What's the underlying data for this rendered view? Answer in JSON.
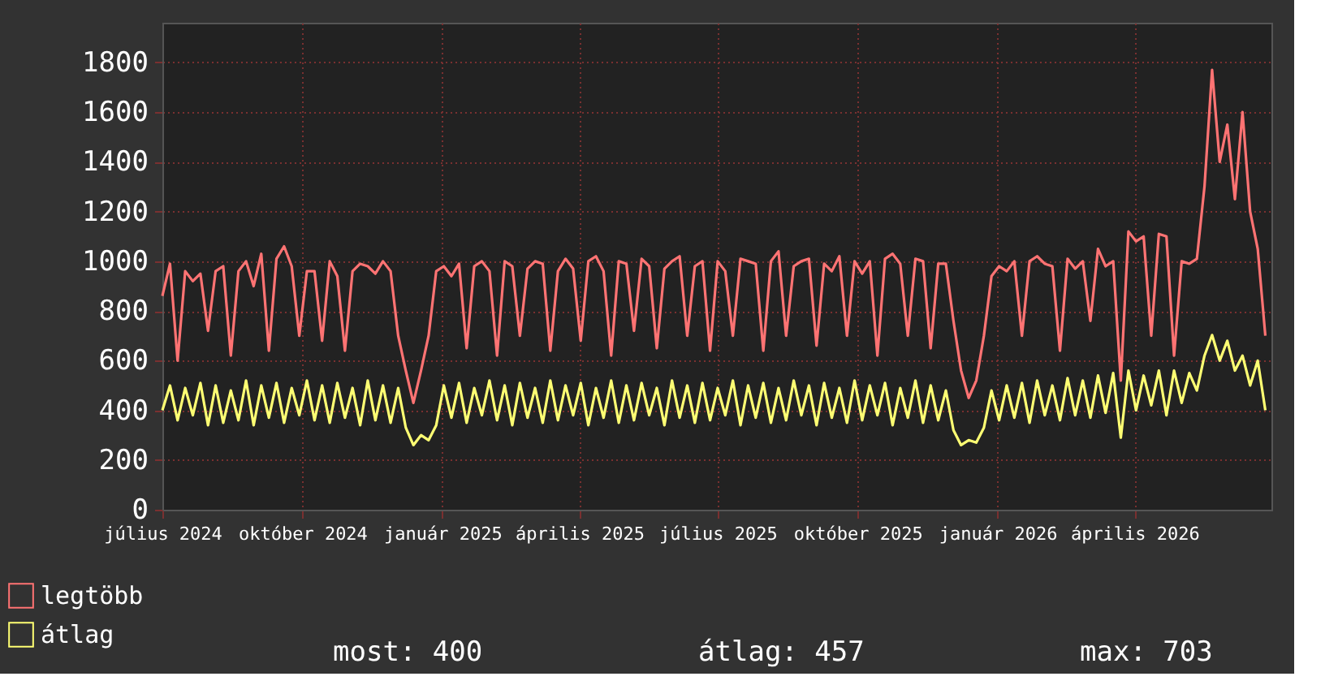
{
  "chart_data": {
    "type": "line",
    "x": [
      "2024-07-01",
      "2024-07-06",
      "2024-07-11",
      "2024-07-16",
      "2024-07-21",
      "2024-07-26",
      "2024-07-31",
      "2024-08-05",
      "2024-08-10",
      "2024-08-15",
      "2024-08-20",
      "2024-08-25",
      "2024-08-30",
      "2024-09-04",
      "2024-09-09",
      "2024-09-14",
      "2024-09-19",
      "2024-09-24",
      "2024-09-29",
      "2024-10-04",
      "2024-10-09",
      "2024-10-14",
      "2024-10-19",
      "2024-10-24",
      "2024-10-29",
      "2024-11-03",
      "2024-11-08",
      "2024-11-13",
      "2024-11-18",
      "2024-11-23",
      "2024-11-28",
      "2024-12-03",
      "2024-12-08",
      "2024-12-13",
      "2024-12-18",
      "2024-12-23",
      "2024-12-28",
      "2025-01-02",
      "2025-01-07",
      "2025-01-12",
      "2025-01-17",
      "2025-01-22",
      "2025-01-27",
      "2025-02-01",
      "2025-02-06",
      "2025-02-11",
      "2025-02-16",
      "2025-02-21",
      "2025-02-26",
      "2025-03-03",
      "2025-03-08",
      "2025-03-13",
      "2025-03-18",
      "2025-03-23",
      "2025-03-28",
      "2025-04-02",
      "2025-04-07",
      "2025-04-12",
      "2025-04-17",
      "2025-04-22",
      "2025-04-27",
      "2025-05-02",
      "2025-05-07",
      "2025-05-12",
      "2025-05-17",
      "2025-05-22",
      "2025-05-27",
      "2025-06-01",
      "2025-06-06",
      "2025-06-11",
      "2025-06-16",
      "2025-06-21",
      "2025-06-26",
      "2025-07-01",
      "2025-07-06",
      "2025-07-11",
      "2025-07-16",
      "2025-07-21",
      "2025-07-26",
      "2025-07-31",
      "2025-08-05",
      "2025-08-10",
      "2025-08-15",
      "2025-08-20",
      "2025-08-25",
      "2025-08-30",
      "2025-09-04",
      "2025-09-09",
      "2025-09-14",
      "2025-09-19",
      "2025-09-24",
      "2025-09-29",
      "2025-10-04",
      "2025-10-09",
      "2025-10-14",
      "2025-10-19",
      "2025-10-24",
      "2025-10-29",
      "2025-11-03",
      "2025-11-08",
      "2025-11-13",
      "2025-11-18",
      "2025-11-23",
      "2025-11-28",
      "2025-12-03",
      "2025-12-08",
      "2025-12-13",
      "2025-12-18",
      "2025-12-23",
      "2025-12-28",
      "2026-01-02",
      "2026-01-07",
      "2026-01-12",
      "2026-01-17",
      "2026-01-22",
      "2026-01-27",
      "2026-02-01",
      "2026-02-06",
      "2026-02-11",
      "2026-02-16",
      "2026-02-21",
      "2026-02-26",
      "2026-03-03",
      "2026-03-08",
      "2026-03-13",
      "2026-03-18",
      "2026-03-23",
      "2026-03-28",
      "2026-04-02",
      "2026-04-07",
      "2026-04-12",
      "2026-04-17",
      "2026-04-22",
      "2026-04-27",
      "2026-05-02",
      "2026-05-07",
      "2026-05-12",
      "2026-05-17",
      "2026-05-22",
      "2026-05-27",
      "2026-06-01",
      "2026-06-06",
      "2026-06-11",
      "2026-06-16",
      "2026-06-21",
      "2026-06-26"
    ],
    "xlim": [
      "2024-07-01",
      "2026-06-30"
    ],
    "xticks": [
      {
        "value": "2024-07-01",
        "label": "július 2024"
      },
      {
        "value": "2024-10-01",
        "label": "október 2024"
      },
      {
        "value": "2025-01-01",
        "label": "január 2025"
      },
      {
        "value": "2025-04-01",
        "label": "április 2025"
      },
      {
        "value": "2025-07-01",
        "label": "július 2025"
      },
      {
        "value": "2025-10-01",
        "label": "október 2025"
      },
      {
        "value": "2026-01-01",
        "label": "január 2026"
      },
      {
        "value": "2026-04-01",
        "label": "április 2026"
      }
    ],
    "ylim": [
      0,
      1960
    ],
    "yticks": [
      0,
      200,
      400,
      600,
      800,
      1000,
      1200,
      1400,
      1600,
      1800
    ],
    "grid": true,
    "legend": "bottom left",
    "marker": "none",
    "line_style": "solid",
    "series": [
      {
        "name": "legtöbb",
        "color": "#ff7373",
        "values": [
          860,
          990,
          600,
          960,
          920,
          950,
          720,
          960,
          980,
          620,
          960,
          1000,
          900,
          1030,
          640,
          1010,
          1060,
          980,
          700,
          960,
          960,
          680,
          1000,
          940,
          640,
          960,
          990,
          980,
          950,
          1000,
          960,
          700,
          560,
          430,
          560,
          700,
          960,
          980,
          940,
          990,
          650,
          980,
          1000,
          960,
          620,
          1000,
          980,
          700,
          970,
          1000,
          990,
          640,
          960,
          1010,
          970,
          680,
          1000,
          1020,
          960,
          620,
          1000,
          990,
          720,
          1010,
          980,
          650,
          970,
          1000,
          1020,
          700,
          980,
          1000,
          640,
          1000,
          960,
          700,
          1010,
          1000,
          990,
          640,
          1000,
          1040,
          700,
          980,
          1000,
          1010,
          660,
          990,
          960,
          1020,
          700,
          1000,
          950,
          1000,
          620,
          1010,
          1030,
          990,
          700,
          1010,
          1000,
          650,
          990,
          990,
          760,
          560,
          450,
          520,
          700,
          940,
          980,
          960,
          1000,
          700,
          1000,
          1020,
          990,
          980,
          640,
          1010,
          970,
          1000,
          760,
          1050,
          980,
          1000,
          520,
          1120,
          1080,
          1100,
          700,
          1110,
          1100,
          620,
          1000,
          990,
          1010,
          1300,
          1770,
          1400,
          1550,
          1250,
          1600,
          1200,
          1050,
          700
        ]
      },
      {
        "name": "átlag",
        "color": "#ffff73",
        "values": [
          400,
          500,
          360,
          490,
          380,
          510,
          340,
          500,
          350,
          480,
          360,
          520,
          340,
          500,
          370,
          510,
          350,
          490,
          380,
          520,
          360,
          500,
          350,
          510,
          370,
          490,
          340,
          520,
          360,
          500,
          350,
          490,
          330,
          260,
          300,
          280,
          340,
          500,
          370,
          510,
          350,
          490,
          380,
          520,
          360,
          500,
          340,
          510,
          370,
          490,
          350,
          520,
          360,
          500,
          380,
          510,
          340,
          490,
          370,
          520,
          350,
          500,
          360,
          510,
          380,
          490,
          340,
          520,
          370,
          500,
          350,
          510,
          360,
          490,
          380,
          520,
          340,
          500,
          370,
          510,
          350,
          490,
          360,
          520,
          380,
          500,
          340,
          510,
          370,
          490,
          350,
          520,
          360,
          500,
          380,
          510,
          340,
          490,
          370,
          520,
          350,
          500,
          360,
          480,
          320,
          260,
          280,
          270,
          330,
          480,
          360,
          500,
          370,
          510,
          350,
          520,
          380,
          500,
          360,
          530,
          380,
          520,
          370,
          540,
          390,
          550,
          290,
          560,
          400,
          540,
          420,
          560,
          380,
          560,
          430,
          550,
          480,
          620,
          703,
          600,
          680,
          560,
          620,
          500,
          600,
          400
        ]
      }
    ],
    "annotations": [
      "most: 400",
      "átlag: 457",
      "max: 703"
    ]
  }
}
